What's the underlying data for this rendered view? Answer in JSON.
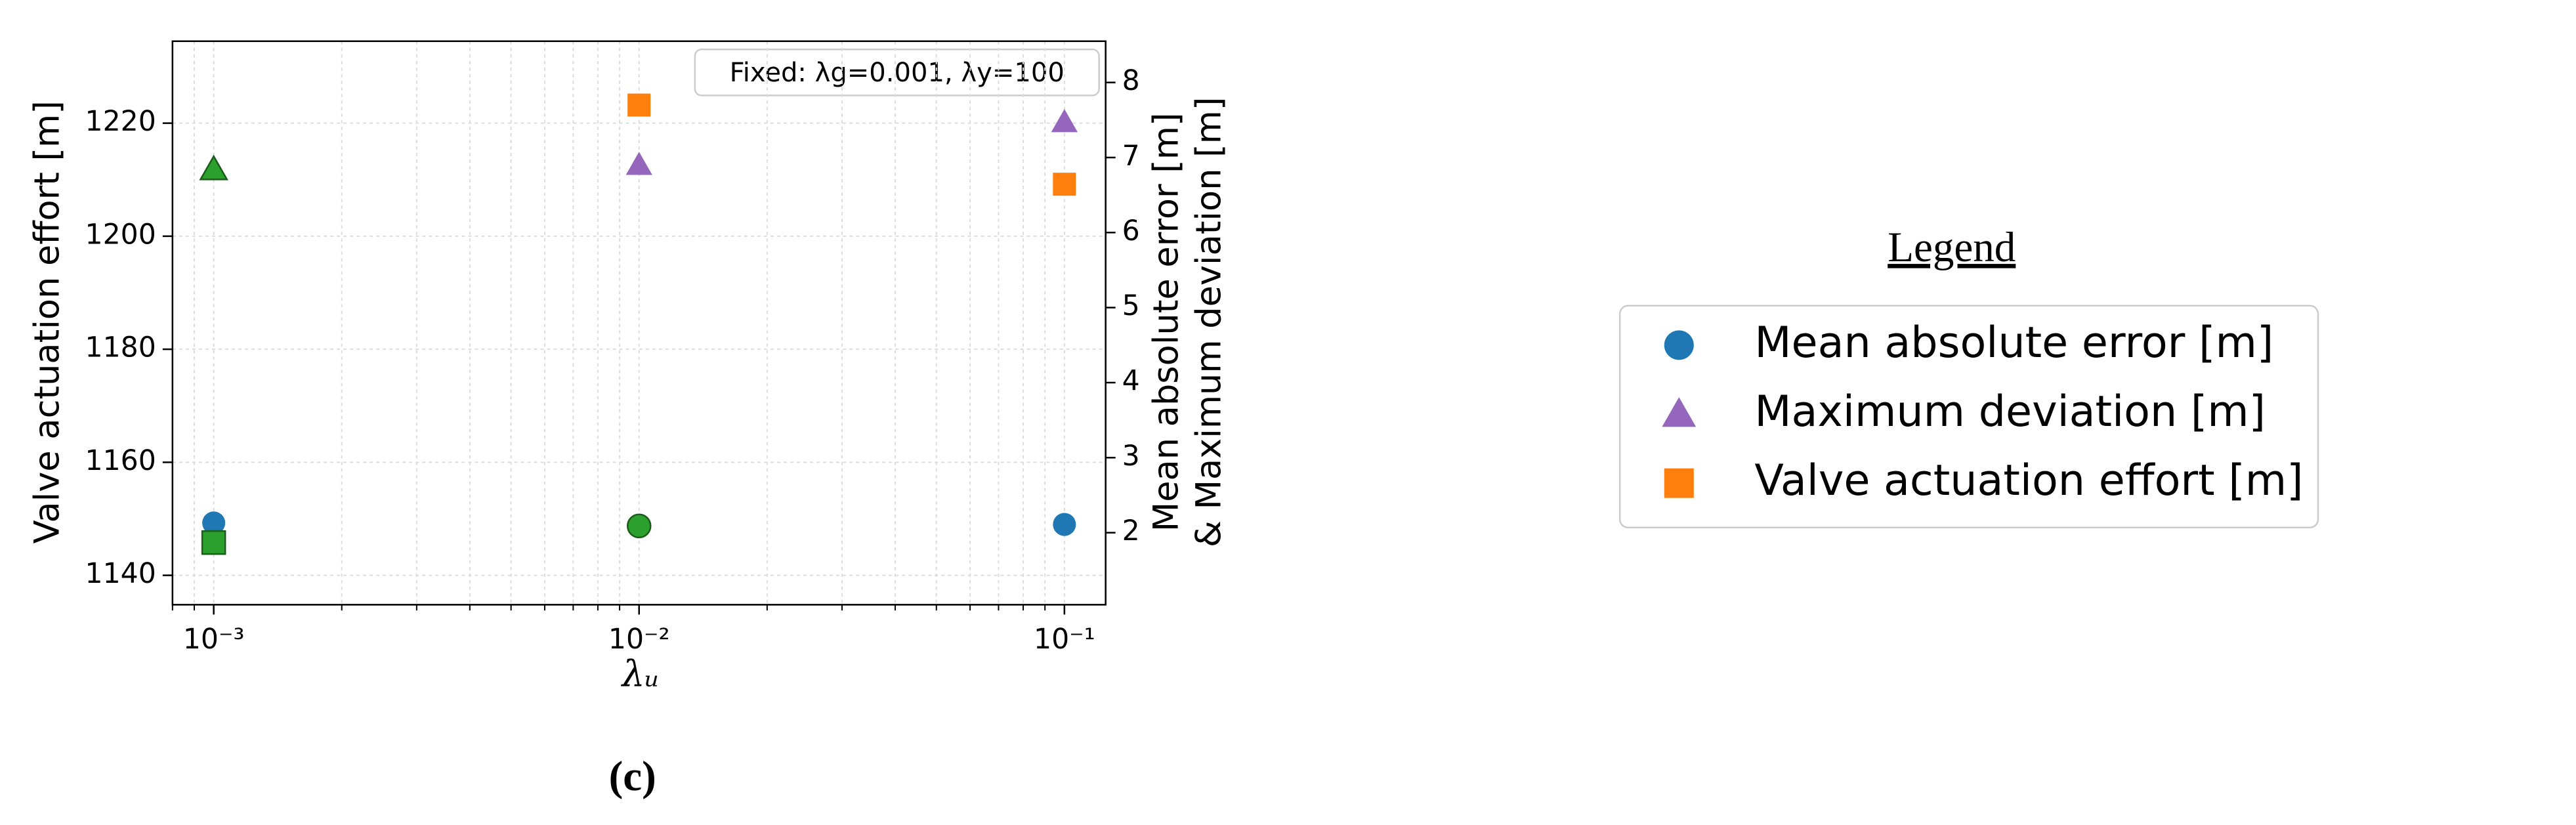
{
  "chart_data": {
    "type": "scatter",
    "xlabel": "λᵤ",
    "ylabel": "Valve actuation effort [m]",
    "y2label": [
      "Mean absolute error [m]",
      "& Maximum deviation [m]"
    ],
    "annotation": "Fixed: λg=0.001, λy=100",
    "caption": "(c)",
    "legend_title": "Legend",
    "xscale": "log",
    "xminor": true,
    "grid": true,
    "xlim": [
      0.0008,
      0.125
    ],
    "xticks": [
      {
        "value": 0.001,
        "label": "10⁻³"
      },
      {
        "value": 0.01,
        "label": "10⁻²"
      },
      {
        "value": 0.1,
        "label": "10⁻¹"
      }
    ],
    "ylim": [
      1134.8,
      1234.5
    ],
    "yticks": [
      1140,
      1160,
      1180,
      1200,
      1220
    ],
    "y2lim": [
      1.04,
      8.55
    ],
    "y2ticks": [
      2,
      3,
      4,
      5,
      6,
      7,
      8
    ],
    "x": [
      0.001,
      0.01,
      0.1
    ],
    "series": [
      {
        "name": "Mean absolute error [m]",
        "color": "#1f77b4",
        "marker": "circle",
        "axis": "y2",
        "values": [
          2.13,
          2.09,
          2.11
        ],
        "point_colors": [
          "#1f77b4",
          "#2ca02c",
          "#1f77b4"
        ]
      },
      {
        "name": "Maximum deviation [m]",
        "color": "#9467bd",
        "marker": "triangle",
        "axis": "y2",
        "values": [
          6.84,
          6.9,
          7.47
        ],
        "point_colors": [
          "#2ca02c",
          "#9467bd",
          "#9467bd"
        ]
      },
      {
        "name": "Valve actuation effort [m]",
        "color": "#ff7f0e",
        "marker": "square",
        "axis": "y",
        "values": [
          1145.8,
          1223.2,
          1209.2
        ],
        "point_colors": [
          "#2ca02c",
          "#ff7f0e",
          "#ff7f0e"
        ]
      }
    ]
  }
}
